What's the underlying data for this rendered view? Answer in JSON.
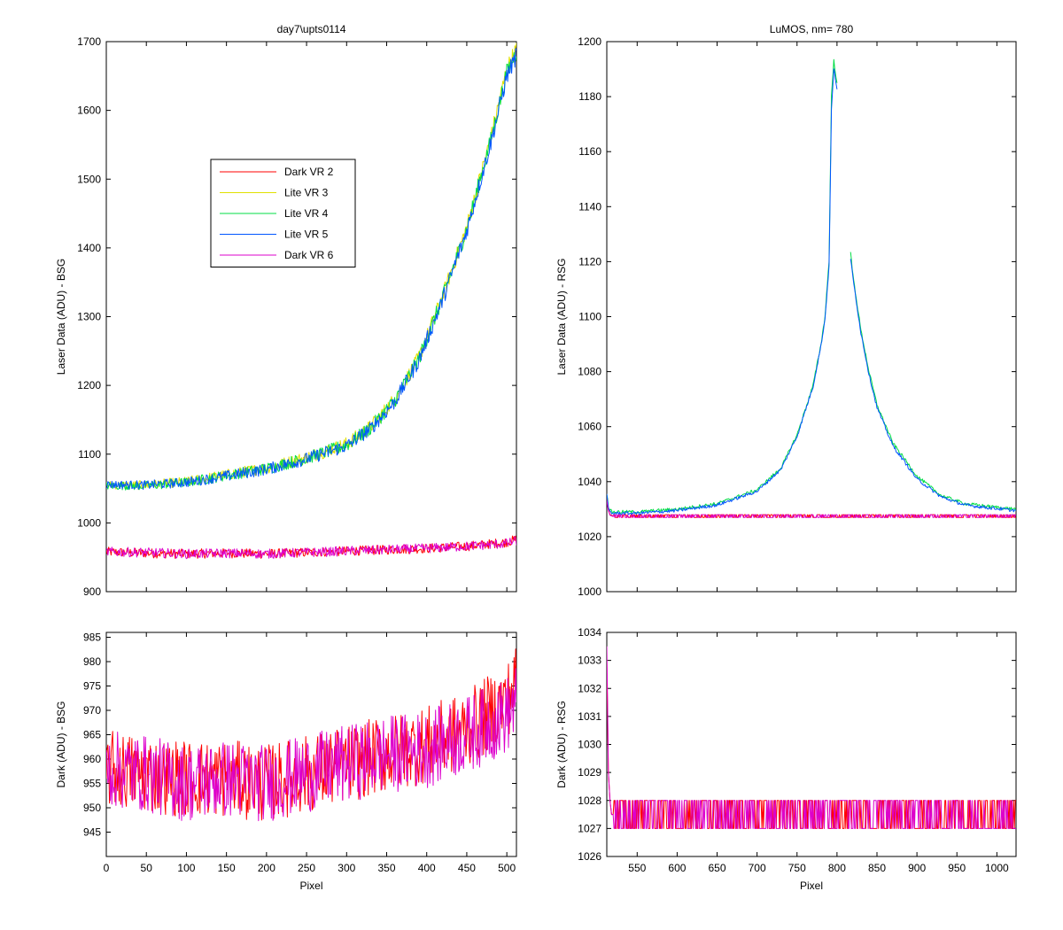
{
  "colors": {
    "dark_vr2": "#ff0000",
    "lite_vr3": "#e0e000",
    "lite_vr4": "#00dd44",
    "lite_vr5": "#0055ff",
    "dark_vr6": "#dd00cc"
  },
  "chart_data": [
    {
      "id": "top-left",
      "type": "line",
      "title": "day7\\upts0114",
      "xlabel": "",
      "ylabel": "Laser Data (ADU) - BSG",
      "xlim": [
        0,
        512
      ],
      "ylim": [
        900,
        1700
      ],
      "xticks": [
        0,
        50,
        100,
        150,
        200,
        250,
        300,
        350,
        400,
        450,
        500
      ],
      "yticks": [
        900,
        1000,
        1100,
        1200,
        1300,
        1400,
        1500,
        1600,
        1700
      ],
      "show_xtick_labels": false,
      "legend": {
        "placement": "upper-left-inside",
        "entries": [
          "Dark VR 2",
          "Lite VR 3",
          "Lite VR 4",
          "Lite VR 5",
          "Dark VR 6"
        ]
      },
      "series": [
        {
          "name": "Dark VR 2",
          "x": [
            0,
            50,
            100,
            150,
            200,
            250,
            300,
            350,
            400,
            450,
            500,
            512
          ],
          "y": [
            958,
            956,
            955,
            956,
            955,
            957,
            959,
            961,
            963,
            966,
            972,
            976
          ]
        },
        {
          "name": "Lite VR 3",
          "x": [
            0,
            50,
            100,
            150,
            200,
            250,
            300,
            330,
            360,
            390,
            420,
            450,
            480,
            500,
            512
          ],
          "y": [
            1055,
            1055,
            1060,
            1070,
            1080,
            1095,
            1115,
            1140,
            1180,
            1240,
            1330,
            1430,
            1560,
            1660,
            1690
          ]
        },
        {
          "name": "Lite VR 4",
          "x": [
            0,
            50,
            100,
            150,
            200,
            250,
            300,
            330,
            360,
            390,
            420,
            450,
            480,
            500,
            512
          ],
          "y": [
            1054,
            1054,
            1059,
            1069,
            1079,
            1094,
            1113,
            1138,
            1178,
            1238,
            1328,
            1428,
            1557,
            1655,
            1685
          ]
        },
        {
          "name": "Lite VR 5",
          "x": [
            0,
            50,
            100,
            150,
            200,
            250,
            300,
            330,
            360,
            390,
            420,
            450,
            480,
            500,
            512
          ],
          "y": [
            1056,
            1055,
            1059,
            1068,
            1078,
            1093,
            1112,
            1137,
            1176,
            1236,
            1325,
            1425,
            1553,
            1650,
            1680
          ]
        },
        {
          "name": "Dark VR 6",
          "x": [
            0,
            50,
            100,
            150,
            200,
            250,
            300,
            350,
            400,
            450,
            500,
            512
          ],
          "y": [
            958,
            957,
            955,
            956,
            955,
            957,
            959,
            961,
            963,
            966,
            970,
            974
          ]
        }
      ]
    },
    {
      "id": "top-right",
      "type": "line",
      "title": "LuMOS, nm= 780",
      "xlabel": "",
      "ylabel": "Laser Data (ADU) - RSG",
      "xlim": [
        512,
        1024
      ],
      "ylim": [
        1000,
        1200
      ],
      "xticks": [
        550,
        600,
        650,
        700,
        750,
        800,
        850,
        900,
        950,
        1000
      ],
      "yticks": [
        1000,
        1020,
        1040,
        1060,
        1080,
        1100,
        1120,
        1140,
        1160,
        1180,
        1200
      ],
      "show_xtick_labels": false,
      "series": [
        {
          "name": "Dark VR 2",
          "x": [
            512,
            514,
            516,
            520,
            1024
          ],
          "y": [
            1034,
            1030,
            1028,
            1027.5,
            1027.5
          ]
        },
        {
          "name": "Lite VR 4",
          "x": [
            512,
            514,
            518,
            525,
            550,
            600,
            650,
            700,
            730,
            750,
            770,
            780,
            785,
            790,
            793,
            796,
            800
          ],
          "y": [
            1036,
            1031,
            1029,
            1029,
            1029,
            1030,
            1032,
            1037,
            1045,
            1057,
            1075,
            1090,
            1100,
            1120,
            1180,
            1193,
            1185
          ]
        },
        {
          "name": "Lite VR 4",
          "x": [
            817,
            820,
            830,
            840,
            850,
            870,
            900,
            930,
            960,
            990,
            1024
          ],
          "y": [
            1123,
            1115,
            1095,
            1080,
            1068,
            1054,
            1042,
            1035,
            1032,
            1031,
            1030
          ]
        },
        {
          "name": "Lite VR 5",
          "x": [
            512,
            514,
            518,
            525,
            550,
            600,
            650,
            700,
            730,
            750,
            770,
            780,
            785,
            790,
            793,
            796,
            800
          ],
          "y": [
            1035,
            1030,
            1028.5,
            1028.5,
            1028.5,
            1029.5,
            1031.5,
            1036.5,
            1044.5,
            1056.5,
            1074.5,
            1089.5,
            1099,
            1118,
            1175,
            1190,
            1183
          ]
        },
        {
          "name": "Lite VR 5",
          "x": [
            817,
            820,
            830,
            840,
            850,
            870,
            900,
            930,
            960,
            990,
            1024
          ],
          "y": [
            1121,
            1114,
            1094,
            1079,
            1067,
            1053,
            1041,
            1034.5,
            1031.5,
            1030.5,
            1029.5
          ]
        },
        {
          "name": "Dark VR 6",
          "x": [
            512,
            514,
            516,
            520,
            1024
          ],
          "y": [
            1033,
            1029.5,
            1027.8,
            1027.3,
            1027.3
          ]
        }
      ]
    },
    {
      "id": "bottom-left",
      "type": "line",
      "title": "",
      "xlabel": "Pixel",
      "ylabel": "Dark (ADU) - BSG",
      "xlim": [
        0,
        512
      ],
      "ylim": [
        940,
        986
      ],
      "xticks": [
        0,
        50,
        100,
        150,
        200,
        250,
        300,
        350,
        400,
        450,
        500
      ],
      "yticks": [
        945,
        950,
        955,
        960,
        965,
        970,
        975,
        980,
        985
      ],
      "show_xtick_labels": true,
      "series": [
        {
          "name": "Dark VR 2",
          "x": [
            0,
            50,
            100,
            150,
            200,
            250,
            300,
            350,
            400,
            450,
            500,
            512
          ],
          "y": [
            958,
            957,
            956,
            956,
            955,
            957,
            959,
            961,
            963,
            966,
            972,
            976
          ]
        },
        {
          "name": "Dark VR 6",
          "x": [
            0,
            50,
            100,
            150,
            200,
            250,
            300,
            350,
            400,
            450,
            500,
            512
          ],
          "y": [
            958,
            957,
            955,
            956,
            955,
            957,
            959,
            961,
            962,
            965,
            969,
            972
          ]
        }
      ]
    },
    {
      "id": "bottom-right",
      "type": "line",
      "title": "",
      "xlabel": "Pixel",
      "ylabel": "Dark (ADU) - RSG",
      "xlim": [
        512,
        1024
      ],
      "ylim": [
        1026,
        1034
      ],
      "xticks": [
        550,
        600,
        650,
        700,
        750,
        800,
        850,
        900,
        950,
        1000
      ],
      "yticks": [
        1026,
        1027,
        1028,
        1029,
        1030,
        1031,
        1032,
        1033,
        1034
      ],
      "show_xtick_labels": true,
      "series": [
        {
          "name": "Dark VR 2",
          "x": [
            512,
            513,
            514,
            515,
            516,
            518,
            1024
          ],
          "y": [
            1033,
            1031,
            1029,
            1028.5,
            1028,
            1027.5,
            1027.5
          ]
        },
        {
          "name": "Dark VR 6",
          "x": [
            512,
            513,
            514,
            515,
            516,
            518,
            1024
          ],
          "y": [
            1033.5,
            1031.5,
            1029,
            1028.5,
            1028,
            1027.5,
            1027.5
          ]
        }
      ]
    }
  ]
}
